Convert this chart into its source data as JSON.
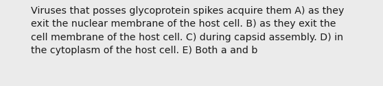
{
  "line1": "Viruses that posses glycoprotein spikes acquire them A) as they",
  "line2": "exit the nuclear membrane of the host cell. B) as they exit the",
  "line3": "cell membrane of the host cell. C) during capsid assembly. D) in",
  "line4": "the cytoplasm of the host cell. E) Both a and b",
  "background_color": "#ebebeb",
  "text_color": "#1a1a1a",
  "font_size": 10.2,
  "font_family": "DejaVu Sans",
  "fig_width": 5.58,
  "fig_height": 1.26,
  "dpi": 100
}
